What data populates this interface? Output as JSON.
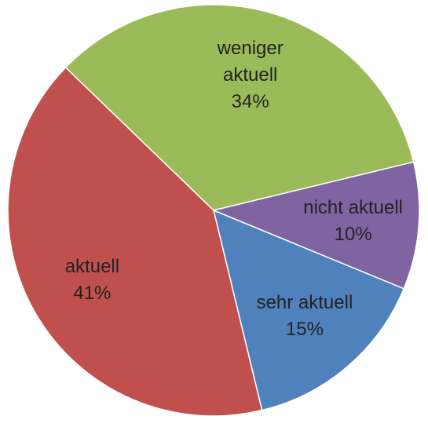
{
  "chart_data": {
    "type": "pie",
    "categories": [
      "weniger aktuell",
      "nicht aktuell",
      "sehr aktuell",
      "aktuell"
    ],
    "values": [
      34,
      10,
      15,
      41
    ],
    "value_labels": [
      "34%",
      "10%",
      "15%",
      "41%"
    ],
    "colors": [
      "#9bbb59",
      "#8064a2",
      "#4f81bd",
      "#c0504d"
    ]
  }
}
